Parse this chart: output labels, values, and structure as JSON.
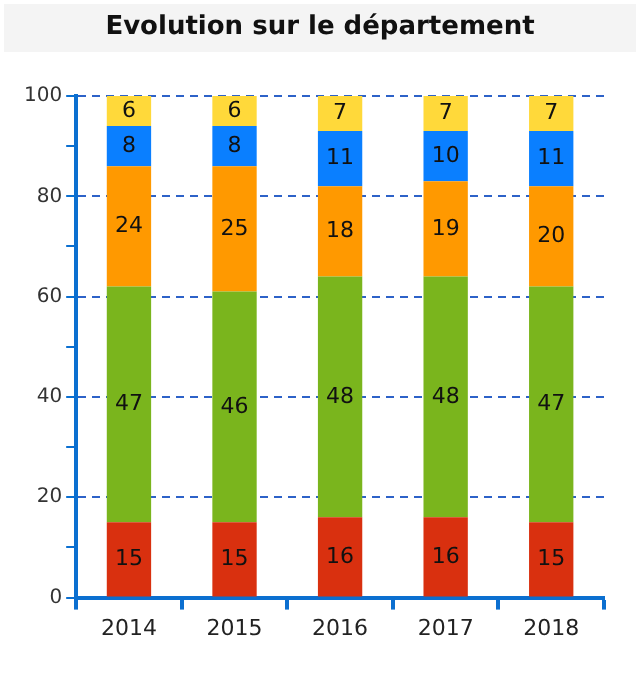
{
  "chart_data": {
    "type": "bar",
    "title": "Evolution sur le département",
    "categories": [
      "2014",
      "2015",
      "2016",
      "2017",
      "2018"
    ],
    "stacked": true,
    "data_labels": true,
    "grid": "y",
    "legend": false,
    "series": [
      {
        "color": "#d9300f",
        "values": [
          15,
          15,
          16,
          16,
          15
        ]
      },
      {
        "color": "#7ab51d",
        "values": [
          47,
          46,
          48,
          48,
          47
        ]
      },
      {
        "color": "#ff9900",
        "values": [
          24,
          25,
          18,
          19,
          20
        ]
      },
      {
        "color": "#0a7fff",
        "values": [
          8,
          8,
          11,
          10,
          11
        ]
      },
      {
        "color": "#ffd93a",
        "values": [
          6,
          6,
          7,
          7,
          7
        ]
      }
    ],
    "ylim": [
      0,
      100
    ],
    "yticks": [
      0,
      {
        "value": 10,
        "label": null
      },
      20,
      {
        "value": 30,
        "label": null
      },
      40,
      {
        "value": 50,
        "label": null
      },
      60,
      {
        "value": 70,
        "label": null
      },
      80,
      {
        "value": 90,
        "label": null
      },
      100
    ]
  }
}
